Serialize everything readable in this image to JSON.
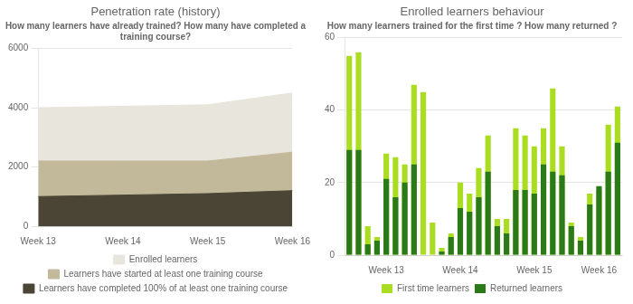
{
  "chart_data": [
    {
      "type": "area",
      "title": "Penetration rate (history)",
      "subtitle": "How many learners have already trained? How many have completed a\ntraining course?",
      "categories": [
        "Week 13",
        "Week 14",
        "Week 15",
        "Week 16"
      ],
      "series": [
        {
          "name": "Enrolled learners",
          "color": "#e8e5dc",
          "values": [
            4000,
            4050,
            4100,
            4500
          ]
        },
        {
          "name": "Learners have started at least one training course",
          "color": "#c2b89a",
          "values": [
            2200,
            2200,
            2200,
            2500
          ]
        },
        {
          "name": "Learners have completed 100% of at least one training course",
          "color": "#4a4535",
          "values": [
            1000,
            1050,
            1100,
            1200
          ]
        }
      ],
      "ylim": [
        0,
        6000
      ],
      "yticks": [
        0,
        2000,
        4000,
        6000
      ],
      "grid": true,
      "legend": "bottom"
    },
    {
      "type": "bar",
      "title": "Enrolled learners behaviour",
      "subtitle": "How many learners trained for the first time ? How many returned ?",
      "categories": [
        null,
        null,
        null,
        null,
        "Week 13",
        null,
        null,
        null,
        null,
        null,
        null,
        null,
        "Week 14",
        null,
        null,
        null,
        null,
        null,
        null,
        null,
        "Week 15",
        null,
        null,
        null,
        null,
        null,
        null,
        "Week 16",
        null,
        null
      ],
      "series": [
        {
          "name": "First time learners",
          "color": "#aadd22",
          "values": [
            55,
            56,
            8,
            5,
            28,
            27,
            25,
            47,
            45,
            9,
            2,
            6,
            20,
            17,
            24,
            33,
            10,
            10,
            35,
            33,
            30,
            35,
            46,
            30,
            9,
            5,
            17,
            18,
            36,
            41
          ]
        },
        {
          "name": "Returned learners",
          "color": "#2a7a1a",
          "values": [
            29,
            29,
            3,
            4,
            21,
            16,
            20,
            25,
            0,
            0,
            1,
            5,
            13,
            12,
            16,
            23,
            8,
            6,
            18,
            18,
            17,
            25,
            23,
            22,
            8,
            4,
            14,
            19,
            23,
            31
          ]
        }
      ],
      "ylim": [
        0,
        60
      ],
      "yticks": [
        0,
        20,
        40,
        60
      ],
      "grid": true,
      "legend": "bottom"
    }
  ]
}
